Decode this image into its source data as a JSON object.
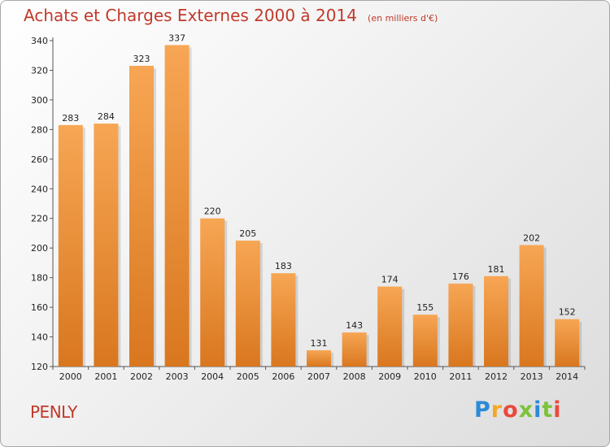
{
  "title": "Achats et Charges Externes 2000 à 2014",
  "unit_label": "(en milliers d'€)",
  "footer_label": "PENLY",
  "logo": {
    "letters": [
      "P",
      "r",
      "o",
      "x",
      "i",
      "t",
      "i"
    ],
    "colors": [
      "#2b8bd6",
      "#f5a623",
      "#e84a3c",
      "#7cc23a",
      "#2b8bd6",
      "#7cc23a",
      "#e84a3c"
    ]
  },
  "colors": {
    "bar_top": "#f7a654",
    "bar_bottom": "#d9771f",
    "title": "#c0392b"
  },
  "chart_data": {
    "type": "bar",
    "categories": [
      "2000",
      "2001",
      "2002",
      "2003",
      "2004",
      "2005",
      "2006",
      "2007",
      "2008",
      "2009",
      "2010",
      "2011",
      "2012",
      "2013",
      "2014"
    ],
    "values": [
      283,
      284,
      323,
      337,
      220,
      205,
      183,
      131,
      143,
      174,
      155,
      176,
      181,
      202,
      152
    ],
    "ylim": [
      120,
      340
    ],
    "yticks": [
      120,
      140,
      160,
      180,
      200,
      220,
      240,
      260,
      280,
      300,
      320,
      340
    ],
    "title": "Achats et Charges Externes 2000 à 2014",
    "xlabel": "",
    "ylabel": "",
    "grid": false
  }
}
